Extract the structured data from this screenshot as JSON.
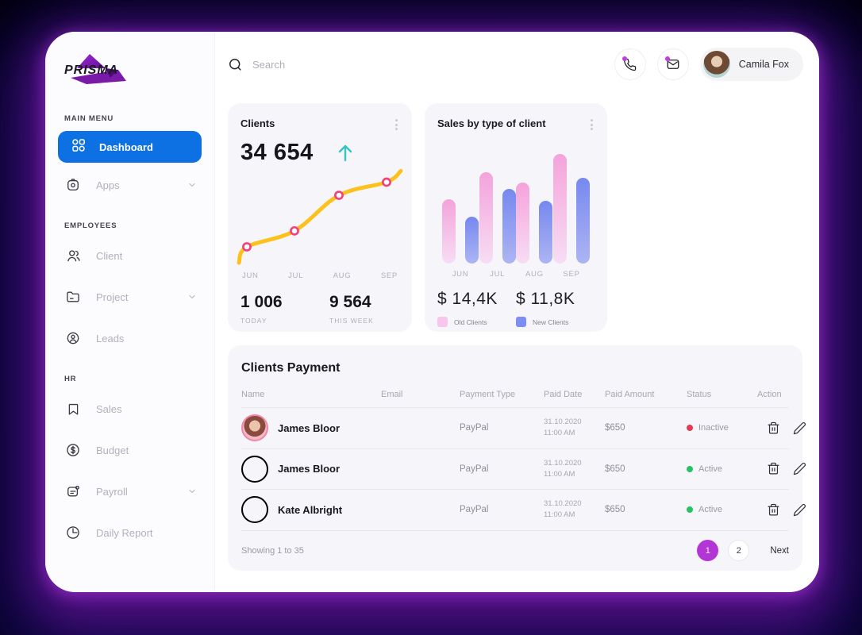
{
  "colors": {
    "accent_blue": "#0e71e3",
    "pagination_purple": "#b335d6",
    "trend_teal": "#35c4bf",
    "status_active_green": "#27c264",
    "status_inactive_red": "#e53a54",
    "notification_dot_purple": "#c43be0"
  },
  "sidebar": {
    "logo_text": "PRISMA",
    "sections": [
      {
        "label": "MAIN MENU",
        "items": [
          {
            "label": "Dashboard"
          },
          {
            "label": "Apps"
          }
        ]
      },
      {
        "label": "EMPLOYEES",
        "items": [
          {
            "label": "Client"
          },
          {
            "label": "Project"
          },
          {
            "label": "Leads"
          }
        ]
      },
      {
        "label": "HR",
        "items": [
          {
            "label": "Sales"
          },
          {
            "label": "Budget"
          },
          {
            "label": "Payroll"
          },
          {
            "label": "Daily Report"
          }
        ]
      }
    ]
  },
  "topbar": {
    "search_placeholder": "Search",
    "user_name": "Camila Fox"
  },
  "chart_data": [
    {
      "type": "line",
      "title": "Clients",
      "total": "34 654",
      "trend": "up",
      "categories": [
        "JUN",
        "JUL",
        "AUG",
        "SEP"
      ],
      "points_pct": [
        [
          4,
          83
        ],
        [
          34,
          66
        ],
        [
          62,
          28
        ],
        [
          92,
          14
        ]
      ],
      "endpoints_pct": [
        [
          -1,
          100
        ],
        [
          101,
          2
        ]
      ],
      "line_color": "#fcc21b",
      "marker_color": "#f2427c",
      "stats": {
        "today": "1 006",
        "today_label": "TODAY",
        "week": "9 564",
        "week_label": "THIS WEEK"
      }
    },
    {
      "type": "bar",
      "title": "Sales by type of client",
      "categories": [
        "JUN",
        "JUL",
        "AUG",
        "SEP"
      ],
      "series": [
        {
          "name": "Old Clients",
          "values": [
            59,
            83,
            74,
            100
          ],
          "color_top": "#f4a3da",
          "color_bottom": "#f7ddf5",
          "legend_color": "#f8c6ec"
        },
        {
          "name": "New Clients",
          "values": [
            43,
            68,
            57,
            78
          ],
          "color_top": "#7788ef",
          "color_bottom": "#acb5f3",
          "legend_color": "#7d8ef2"
        }
      ],
      "totals": {
        "old": "$ 14,4K",
        "new": "$ 11,8K"
      },
      "ylim": [
        0,
        100
      ],
      "legend_position": "bottom"
    }
  ],
  "table": {
    "title": "Clients Payment",
    "headers": [
      "Name",
      "Email",
      "Payment Type",
      "Paid Date",
      "Paid Amount",
      "Status",
      "Action"
    ],
    "rows": [
      {
        "name": "James Bloor",
        "payment_type": "PayPal",
        "paid_date": "31.10.2020",
        "paid_time": "11:00 AM",
        "paid_amount": "$650",
        "status": "Inactive",
        "status_color": "#e53a54"
      },
      {
        "name": "James Bloor",
        "payment_type": "PayPal",
        "paid_date": "31.10.2020",
        "paid_time": "11:00 AM",
        "paid_amount": "$650",
        "status": "Active",
        "status_color": "#27c264"
      },
      {
        "name": "Kate Albright",
        "payment_type": "PayPal",
        "paid_date": "31.10.2020",
        "paid_time": "11:00 AM",
        "paid_amount": "$650",
        "status": "Active",
        "status_color": "#27c264"
      }
    ],
    "footer": {
      "showing": "Showing 1 to 35",
      "pages": [
        "1",
        "2"
      ],
      "active_page": "1",
      "next_label": "Next"
    }
  }
}
